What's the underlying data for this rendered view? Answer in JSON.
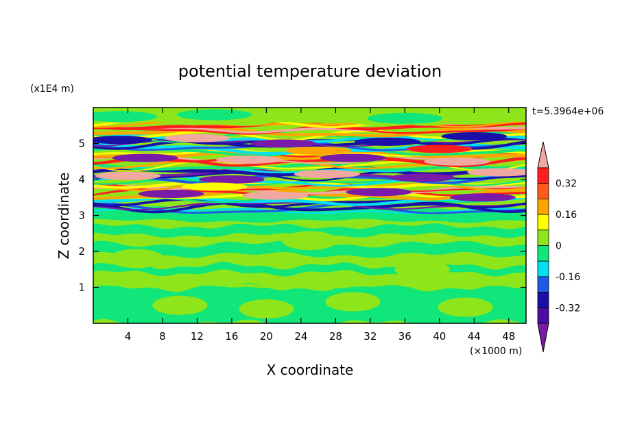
{
  "chart_data": {
    "type": "heatmap",
    "title": "potential temperature deviation",
    "xlabel": "X coordinate",
    "ylabel": "Z coordinate",
    "x_unit": "(×1000 m)",
    "y_unit": "(x1E4 m)",
    "time_label": "t=5.3964e+06",
    "xlim": [
      0,
      50
    ],
    "ylim": [
      0,
      6
    ],
    "x_ticks": [
      4,
      8,
      12,
      16,
      20,
      24,
      28,
      32,
      36,
      40,
      44,
      48
    ],
    "y_ticks": [
      1,
      2,
      3,
      4,
      5
    ],
    "colorbar": {
      "levels": [
        -0.48,
        -0.4,
        -0.32,
        -0.24,
        -0.16,
        -0.08,
        0,
        0.08,
        0.16,
        0.24,
        0.32,
        0.4
      ],
      "colors": [
        "#7a1aa8",
        "#4a0ea0",
        "#1a10a8",
        "#1e5ae6",
        "#00e0f0",
        "#10e67a",
        "#8ee61a",
        "#ffff00",
        "#ffa500",
        "#ff5a1a",
        "#ff1e1e",
        "#f0a8a0"
      ],
      "tick_labels": [
        "0.32",
        "0.16",
        "0",
        "-0.16",
        "-0.32"
      ],
      "tick_values": [
        0.32,
        0.16,
        0,
        -0.16,
        -0.32
      ]
    },
    "layers": [
      {
        "z_range": [
          0,
          3.0
        ],
        "description_values": "mostly 0 to -0.08 with weak perturbations"
      },
      {
        "z_range": [
          3.0,
          5.6
        ],
        "description_values": "alternating strong bands from about -0.48 to 0.40"
      },
      {
        "z_range": [
          5.6,
          6.0
        ],
        "description_values": "near 0"
      }
    ]
  }
}
